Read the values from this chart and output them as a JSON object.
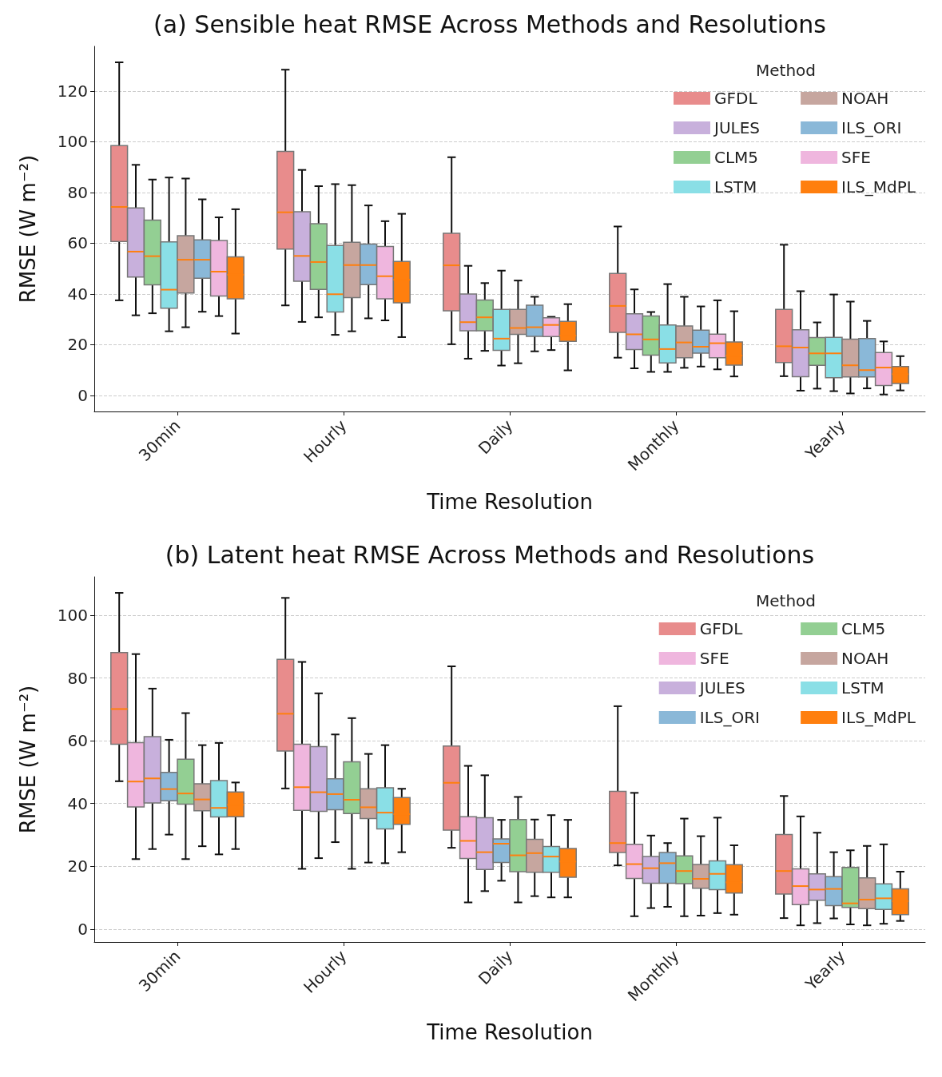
{
  "chart_data": [
    {
      "type": "box",
      "title": "(a) Sensible heat RMSE Across Methods and Resolutions",
      "xlabel": "Time Resolution",
      "ylabel": "RMSE (W m⁻²)",
      "legend_title": "Method",
      "legend": "top right",
      "grid": "y",
      "ylim": [
        -6.3,
        137.6
      ],
      "yticks": [
        0,
        20,
        40,
        60,
        80,
        100,
        120
      ],
      "categories": [
        "30min",
        "Hourly",
        "Daily",
        "Monthly",
        "Yearly"
      ],
      "series": [
        {
          "name": "GFDL",
          "color": "#e88c8c",
          "boxes": [
            {
              "low": 37.5,
              "q1": 60.7,
              "median": 74.3,
              "q3": 98.5,
              "high": 131.3
            },
            {
              "low": 35.5,
              "q1": 57.7,
              "median": 72.2,
              "q3": 96.2,
              "high": 128.4
            },
            {
              "low": 20.2,
              "q1": 33.4,
              "median": 51.3,
              "q3": 63.9,
              "high": 93.9
            },
            {
              "low": 14.9,
              "q1": 24.9,
              "median": 35.3,
              "q3": 48.1,
              "high": 66.6
            },
            {
              "low": 7.6,
              "q1": 13.0,
              "median": 19.4,
              "q3": 33.9,
              "high": 59.4
            }
          ]
        },
        {
          "name": "JULES",
          "color": "#c8b0dc",
          "boxes": [
            {
              "low": 31.6,
              "q1": 46.7,
              "median": 56.7,
              "q3": 73.9,
              "high": 90.9
            },
            {
              "low": 29.0,
              "q1": 45.0,
              "median": 55.0,
              "q3": 72.4,
              "high": 88.9
            },
            {
              "low": 14.5,
              "q1": 25.5,
              "median": 28.9,
              "q3": 40.0,
              "high": 51.1
            },
            {
              "low": 10.7,
              "q1": 18.1,
              "median": 24.1,
              "q3": 32.2,
              "high": 41.8
            },
            {
              "low": 1.9,
              "q1": 7.4,
              "median": 18.9,
              "q3": 25.9,
              "high": 41.1
            }
          ]
        },
        {
          "name": "CLM5",
          "color": "#93cf93",
          "boxes": [
            {
              "low": 32.4,
              "q1": 43.6,
              "median": 54.9,
              "q3": 69.1,
              "high": 85.1
            },
            {
              "low": 30.8,
              "q1": 41.8,
              "median": 52.6,
              "q3": 67.7,
              "high": 82.5
            },
            {
              "low": 17.6,
              "q1": 25.5,
              "median": 30.8,
              "q3": 37.6,
              "high": 44.3
            },
            {
              "low": 9.3,
              "q1": 15.9,
              "median": 22.1,
              "q3": 31.3,
              "high": 32.9
            },
            {
              "low": 2.7,
              "q1": 11.9,
              "median": 16.6,
              "q3": 22.8,
              "high": 28.8
            }
          ]
        },
        {
          "name": "LSTM",
          "color": "#8adfe6",
          "boxes": [
            {
              "low": 25.3,
              "q1": 34.4,
              "median": 41.7,
              "q3": 60.5,
              "high": 85.9
            },
            {
              "low": 23.9,
              "q1": 32.9,
              "median": 39.9,
              "q3": 59.1,
              "high": 83.3
            },
            {
              "low": 11.8,
              "q1": 17.8,
              "median": 22.4,
              "q3": 33.9,
              "high": 49.2
            },
            {
              "low": 9.3,
              "q1": 12.8,
              "median": 18.3,
              "q3": 27.8,
              "high": 43.9
            },
            {
              "low": 1.7,
              "q1": 7.0,
              "median": 16.6,
              "q3": 22.9,
              "high": 39.8
            }
          ]
        },
        {
          "name": "NOAH",
          "color": "#c6a69f",
          "boxes": [
            {
              "low": 26.9,
              "q1": 40.4,
              "median": 53.5,
              "q3": 63.0,
              "high": 85.5
            },
            {
              "low": 25.3,
              "q1": 38.6,
              "median": 51.4,
              "q3": 60.4,
              "high": 82.9
            },
            {
              "low": 12.7,
              "q1": 24.1,
              "median": 26.6,
              "q3": 33.9,
              "high": 45.3
            },
            {
              "low": 10.9,
              "q1": 14.9,
              "median": 20.9,
              "q3": 27.4,
              "high": 38.9
            },
            {
              "low": 0.8,
              "q1": 7.3,
              "median": 11.9,
              "q3": 22.2,
              "high": 37.0
            }
          ]
        },
        {
          "name": "ILS_ORI",
          "color": "#8ab8d8",
          "boxes": [
            {
              "low": 33.0,
              "q1": 46.2,
              "median": 53.5,
              "q3": 61.3,
              "high": 77.3
            },
            {
              "low": 30.4,
              "q1": 43.7,
              "median": 51.4,
              "q3": 59.7,
              "high": 74.9
            },
            {
              "low": 17.4,
              "q1": 23.3,
              "median": 26.9,
              "q3": 35.6,
              "high": 38.9
            },
            {
              "low": 11.4,
              "q1": 16.7,
              "median": 19.2,
              "q3": 25.7,
              "high": 35.1
            },
            {
              "low": 2.8,
              "q1": 7.3,
              "median": 10.0,
              "q3": 22.4,
              "high": 29.4
            }
          ]
        },
        {
          "name": "SFE",
          "color": "#efb6de",
          "boxes": [
            {
              "low": 31.3,
              "q1": 39.2,
              "median": 48.8,
              "q3": 61.1,
              "high": 70.2
            },
            {
              "low": 29.6,
              "q1": 38.1,
              "median": 47.0,
              "q3": 58.7,
              "high": 68.7
            },
            {
              "low": 17.9,
              "q1": 23.2,
              "median": 27.8,
              "q3": 30.6,
              "high": 31.0
            },
            {
              "low": 10.3,
              "q1": 14.9,
              "median": 20.6,
              "q3": 24.2,
              "high": 37.5
            },
            {
              "low": 0.4,
              "q1": 3.9,
              "median": 11.0,
              "q3": 16.9,
              "high": 21.3
            }
          ]
        },
        {
          "name": "ILS_MdPL",
          "color": "#ff7f0e",
          "boxes": [
            {
              "low": 24.4,
              "q1": 38.1,
              "median": 47.6,
              "q3": 54.6,
              "high": 73.4
            },
            {
              "low": 23.0,
              "q1": 36.5,
              "median": 45.6,
              "q3": 52.8,
              "high": 71.6
            },
            {
              "low": 9.9,
              "q1": 21.3,
              "median": 23.6,
              "q3": 29.2,
              "high": 36.0
            },
            {
              "low": 7.5,
              "q1": 12.0,
              "median": 15.7,
              "q3": 21.1,
              "high": 33.2
            },
            {
              "low": 2.0,
              "q1": 4.7,
              "median": 8.4,
              "q3": 11.4,
              "high": 15.5
            }
          ]
        }
      ]
    },
    {
      "type": "box",
      "title": "(b) Latent heat RMSE Across Methods and Resolutions",
      "xlabel": "Time Resolution",
      "ylabel": "RMSE (W m⁻²)",
      "legend_title": "Method",
      "legend": "top right",
      "grid": "y",
      "ylim": [
        -4.1,
        112.2
      ],
      "yticks": [
        0,
        20,
        40,
        60,
        80,
        100
      ],
      "categories": [
        "30min",
        "Hourly",
        "Daily",
        "Monthly",
        "Yearly"
      ],
      "series": [
        {
          "name": "GFDL",
          "color": "#e88c8c",
          "boxes": [
            {
              "low": 47.1,
              "q1": 58.9,
              "median": 70.1,
              "q3": 88.1,
              "high": 107.1
            },
            {
              "low": 44.8,
              "q1": 56.7,
              "median": 68.6,
              "q3": 85.9,
              "high": 105.5
            },
            {
              "low": 25.9,
              "q1": 31.5,
              "median": 46.6,
              "q3": 58.3,
              "high": 83.7
            },
            {
              "low": 20.3,
              "q1": 24.4,
              "median": 27.4,
              "q3": 43.9,
              "high": 71.0
            },
            {
              "low": 3.5,
              "q1": 11.2,
              "median": 18.5,
              "q3": 30.1,
              "high": 42.4
            }
          ]
        },
        {
          "name": "SFE",
          "color": "#efb6de",
          "boxes": [
            {
              "low": 22.3,
              "q1": 38.9,
              "median": 47.0,
              "q3": 59.4,
              "high": 87.6
            },
            {
              "low": 19.2,
              "q1": 37.8,
              "median": 45.2,
              "q3": 58.9,
              "high": 85.1
            },
            {
              "low": 8.5,
              "q1": 22.5,
              "median": 28.1,
              "q3": 35.8,
              "high": 52.0
            },
            {
              "low": 4.1,
              "q1": 16.1,
              "median": 20.7,
              "q3": 27.0,
              "high": 43.4
            },
            {
              "low": 1.2,
              "q1": 7.8,
              "median": 13.7,
              "q3": 19.2,
              "high": 35.9
            }
          ]
        },
        {
          "name": "JULES",
          "color": "#c8b0dc",
          "boxes": [
            {
              "low": 25.5,
              "q1": 40.2,
              "median": 48.0,
              "q3": 61.3,
              "high": 76.6
            },
            {
              "low": 22.6,
              "q1": 37.5,
              "median": 43.6,
              "q3": 58.1,
              "high": 75.1
            },
            {
              "low": 12.1,
              "q1": 19.0,
              "median": 24.5,
              "q3": 35.5,
              "high": 49.0
            },
            {
              "low": 6.7,
              "q1": 14.6,
              "median": 19.4,
              "q3": 23.1,
              "high": 29.8
            },
            {
              "low": 1.9,
              "q1": 9.2,
              "median": 12.6,
              "q3": 17.6,
              "high": 30.7
            }
          ]
        },
        {
          "name": "ILS_ORI",
          "color": "#8ab8d8",
          "boxes": [
            {
              "low": 30.1,
              "q1": 40.9,
              "median": 44.6,
              "q3": 49.9,
              "high": 60.3
            },
            {
              "low": 27.7,
              "q1": 38.0,
              "median": 43.0,
              "q3": 47.9,
              "high": 62.0
            },
            {
              "low": 15.4,
              "q1": 21.2,
              "median": 27.2,
              "q3": 28.7,
              "high": 34.8
            },
            {
              "low": 7.1,
              "q1": 14.6,
              "median": 21.0,
              "q3": 24.4,
              "high": 27.4
            },
            {
              "low": 3.4,
              "q1": 7.5,
              "median": 12.8,
              "q3": 16.7,
              "high": 24.5
            }
          ]
        },
        {
          "name": "CLM5",
          "color": "#93cf93",
          "boxes": [
            {
              "low": 22.3,
              "q1": 39.8,
              "median": 43.2,
              "q3": 54.1,
              "high": 68.8
            },
            {
              "low": 19.2,
              "q1": 36.8,
              "median": 41.2,
              "q3": 53.3,
              "high": 67.2
            },
            {
              "low": 8.5,
              "q1": 18.3,
              "median": 23.5,
              "q3": 34.9,
              "high": 42.1
            },
            {
              "low": 4.1,
              "q1": 14.5,
              "median": 18.5,
              "q3": 23.3,
              "high": 35.2
            },
            {
              "low": 1.5,
              "q1": 6.9,
              "median": 8.2,
              "q3": 19.6,
              "high": 25.1
            }
          ]
        },
        {
          "name": "NOAH",
          "color": "#c6a69f",
          "boxes": [
            {
              "low": 26.4,
              "q1": 37.7,
              "median": 41.3,
              "q3": 46.3,
              "high": 58.6
            },
            {
              "low": 21.2,
              "q1": 35.2,
              "median": 38.8,
              "q3": 44.7,
              "high": 55.8
            },
            {
              "low": 10.5,
              "q1": 18.1,
              "median": 24.2,
              "q3": 28.6,
              "high": 34.9
            },
            {
              "low": 4.3,
              "q1": 13.0,
              "median": 16.0,
              "q3": 20.6,
              "high": 29.6
            },
            {
              "low": 1.2,
              "q1": 6.5,
              "median": 9.4,
              "q3": 16.3,
              "high": 26.5
            }
          ]
        },
        {
          "name": "LSTM",
          "color": "#8adfe6",
          "boxes": [
            {
              "low": 23.8,
              "q1": 35.7,
              "median": 38.6,
              "q3": 47.3,
              "high": 59.3
            },
            {
              "low": 21.0,
              "q1": 31.9,
              "median": 37.1,
              "q3": 45.0,
              "high": 58.6
            },
            {
              "low": 10.1,
              "q1": 18.1,
              "median": 23.1,
              "q3": 26.3,
              "high": 36.3
            },
            {
              "low": 5.1,
              "q1": 12.6,
              "median": 17.6,
              "q3": 21.7,
              "high": 35.5
            },
            {
              "low": 1.7,
              "q1": 6.3,
              "median": 9.8,
              "q3": 14.4,
              "high": 27.0
            }
          ]
        },
        {
          "name": "ILS_MdPL",
          "color": "#ff7f0e",
          "boxes": [
            {
              "low": 25.5,
              "q1": 35.8,
              "median": 39.6,
              "q3": 43.7,
              "high": 46.7
            },
            {
              "low": 24.5,
              "q1": 33.4,
              "median": 36.6,
              "q3": 41.9,
              "high": 44.7
            },
            {
              "low": 10.1,
              "q1": 16.5,
              "median": 21.5,
              "q3": 25.7,
              "high": 34.8
            },
            {
              "low": 4.6,
              "q1": 11.5,
              "median": 14.9,
              "q3": 20.5,
              "high": 26.7
            },
            {
              "low": 2.6,
              "q1": 4.6,
              "median": 8.9,
              "q3": 12.8,
              "high": 18.3
            }
          ]
        }
      ]
    }
  ]
}
